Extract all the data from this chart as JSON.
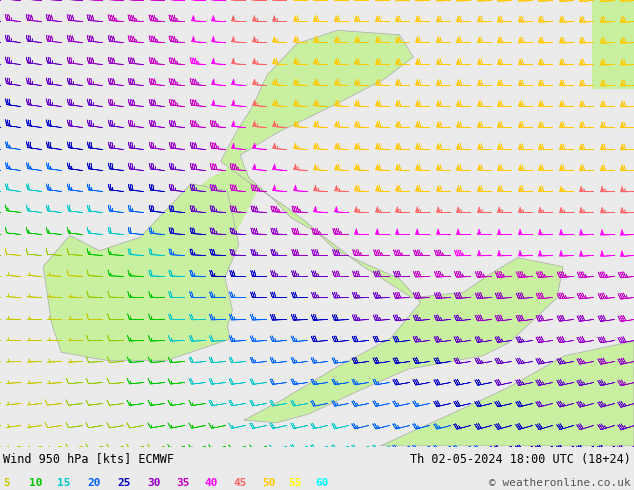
{
  "title_left": "Wind 950 hPa [kts] ECMWF",
  "title_right": "Th 02-05-2024 18:00 UTC (18+24)",
  "credit": "© weatheronline.co.uk",
  "legend_values": [
    5,
    10,
    15,
    20,
    25,
    30,
    35,
    40,
    45,
    50,
    55,
    60
  ],
  "legend_colors": [
    "#c8c800",
    "#00c800",
    "#00c8c8",
    "#0064ff",
    "#0000c8",
    "#9600c8",
    "#c800c8",
    "#ff00ff",
    "#ff6464",
    "#ffc800",
    "#ffff00",
    "#00ffff"
  ],
  "bg_color": "#ebebeb",
  "land_color": "#c8f0a0",
  "coast_color": "#aaaaaa",
  "fig_width": 6.34,
  "fig_height": 4.9,
  "dpi": 100,
  "map_extent": [
    -11.5,
    3.5,
    49.5,
    59.5
  ],
  "grid_nx": 32,
  "grid_ny": 22
}
